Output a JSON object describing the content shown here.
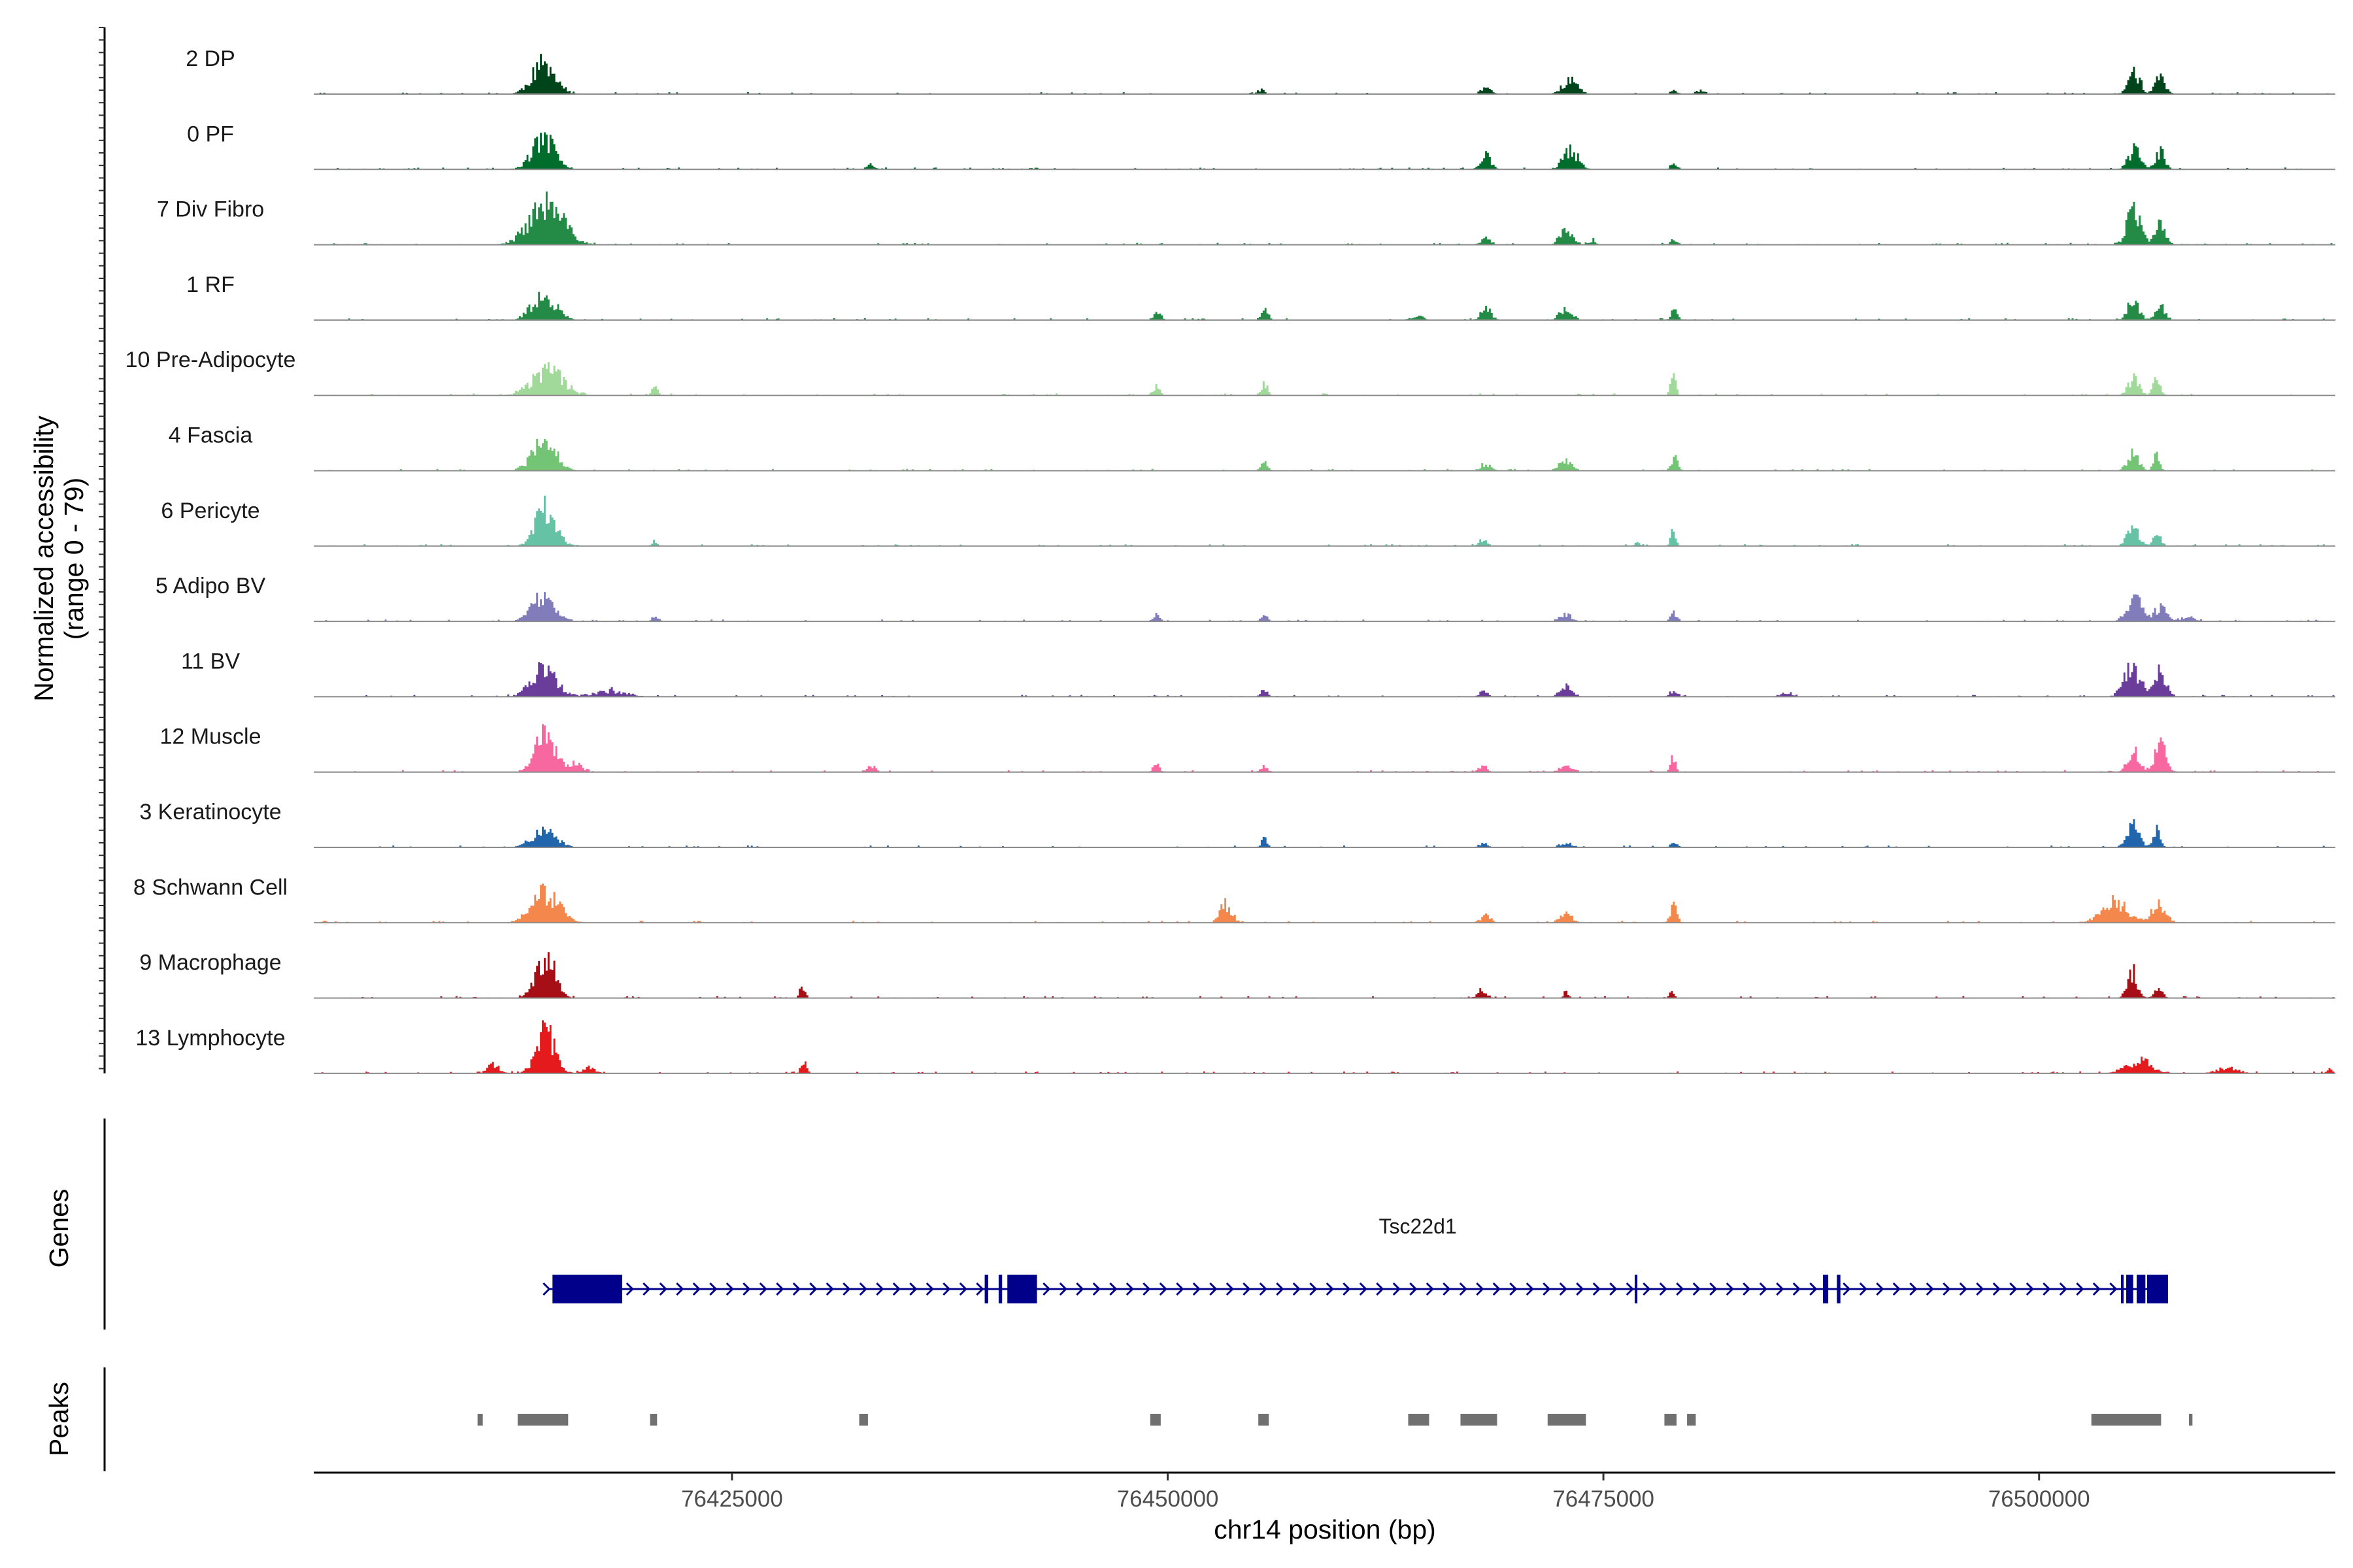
{
  "chart_data": {
    "type": "area",
    "title": "",
    "chromosome": "chr14",
    "xlabel": "chr14 position (bp)",
    "ylabel": "Normalized accessibility",
    "ylabel_range": "(range 0 - 79)",
    "ylim": [
      0,
      79
    ],
    "xlim": [
      76401000,
      76517000
    ],
    "x_ticks": [
      76425000,
      76450000,
      76475000,
      76500000
    ],
    "x_tick_labels": [
      "76425000",
      "76450000",
      "76475000",
      "76500000"
    ],
    "panel_labels": {
      "genes": "Genes",
      "peaks": "Peaks"
    },
    "colors": {
      "baseline": "#8c8c8c",
      "gene": "#00008b",
      "peak": "#707070",
      "axis": "#000000"
    },
    "tracks": [
      {
        "name": "2 DP",
        "color": "#00441b",
        "seed": 11,
        "peaks": [
          [
            76413300,
            76415000,
            42,
            1400
          ],
          [
            76467700,
            76468700,
            10,
            600
          ],
          [
            76472300,
            76473800,
            19,
            900
          ],
          [
            76478700,
            76479300,
            6,
            400
          ],
          [
            76480000,
            76481000,
            5,
            600
          ],
          [
            76455000,
            76455600,
            6,
            400
          ],
          [
            76504800,
            76506000,
            33,
            700
          ],
          [
            76506400,
            76507400,
            25,
            600
          ]
        ]
      },
      {
        "name": "0 PF",
        "color": "#006d2c",
        "seed": 23,
        "peaks": [
          [
            76413300,
            76415000,
            42,
            1400
          ],
          [
            76467700,
            76468700,
            20,
            600
          ],
          [
            76472300,
            76473800,
            26,
            900
          ],
          [
            76478700,
            76479300,
            10,
            400
          ],
          [
            76432500,
            76433300,
            6,
            500
          ],
          [
            76504800,
            76506000,
            28,
            700
          ],
          [
            76506400,
            76507400,
            26,
            600
          ]
        ]
      },
      {
        "name": "7 Div Fibro",
        "color": "#238b45",
        "seed": 37,
        "peaks": [
          [
            76412800,
            76415800,
            56,
            2000
          ],
          [
            76467700,
            76468700,
            9,
            600
          ],
          [
            76472300,
            76473300,
            24,
            700
          ],
          [
            76474000,
            76474600,
            6,
            400
          ],
          [
            76478700,
            76479300,
            7,
            400
          ],
          [
            76504800,
            76506000,
            52,
            800
          ],
          [
            76506400,
            76507400,
            35,
            600
          ]
        ]
      },
      {
        "name": "1 RF",
        "color": "#238b45",
        "seed": 41,
        "peaks": [
          [
            76413300,
            76415000,
            35,
            1400
          ],
          [
            76449000,
            76449700,
            10,
            500
          ],
          [
            76455200,
            76455800,
            18,
            400
          ],
          [
            76463500,
            76465000,
            6,
            700
          ],
          [
            76467700,
            76468700,
            16,
            600
          ],
          [
            76472300,
            76473300,
            18,
            700
          ],
          [
            76478700,
            76479300,
            13,
            400
          ],
          [
            76504800,
            76505900,
            27,
            700
          ],
          [
            76506400,
            76507400,
            20,
            600
          ]
        ]
      },
      {
        "name": "10 Pre-Adipocyte",
        "color": "#a1d99b",
        "seed": 53,
        "peaks": [
          [
            76413000,
            76415800,
            35,
            1800
          ],
          [
            76420300,
            76420700,
            16,
            300
          ],
          [
            76449000,
            76449600,
            13,
            400
          ],
          [
            76455200,
            76455800,
            16,
            400
          ],
          [
            76478700,
            76479200,
            32,
            300
          ],
          [
            76504800,
            76505900,
            23,
            700
          ],
          [
            76506400,
            76507000,
            29,
            400
          ]
        ]
      },
      {
        "name": "4 Fascia",
        "color": "#74c476",
        "seed": 61,
        "peaks": [
          [
            76413300,
            76415000,
            40,
            1400
          ],
          [
            76455200,
            76455800,
            12,
            400
          ],
          [
            76467700,
            76468700,
            10,
            600
          ],
          [
            76472300,
            76473300,
            13,
            700
          ],
          [
            76478700,
            76479300,
            20,
            400
          ],
          [
            76504800,
            76505900,
            23,
            700
          ],
          [
            76506400,
            76507000,
            20,
            400
          ]
        ]
      },
      {
        "name": "6 Pericyte",
        "color": "#66c2a4",
        "seed": 71,
        "peaks": [
          [
            76413500,
            76415000,
            53,
            1200
          ],
          [
            76420300,
            76420700,
            8,
            300
          ],
          [
            76467700,
            76468400,
            8,
            500
          ],
          [
            76476700,
            76477100,
            7,
            300
          ],
          [
            76478700,
            76479200,
            22,
            300
          ],
          [
            76504800,
            76505900,
            25,
            700
          ],
          [
            76506400,
            76507000,
            25,
            400
          ]
        ]
      },
      {
        "name": "5 Adipo BV",
        "color": "#807dba",
        "seed": 83,
        "peaks": [
          [
            76413300,
            76415000,
            35,
            1400
          ],
          [
            76420300,
            76420700,
            8,
            300
          ],
          [
            76449000,
            76449600,
            9,
            400
          ],
          [
            76455200,
            76455800,
            8,
            400
          ],
          [
            76472300,
            76473300,
            10,
            700
          ],
          [
            76478700,
            76479300,
            12,
            400
          ],
          [
            76504800,
            76506000,
            36,
            900
          ],
          [
            76506400,
            76507400,
            20,
            700
          ],
          [
            76507500,
            76509500,
            6,
            900
          ]
        ]
      },
      {
        "name": "11 BV",
        "color": "#6a3d9a",
        "seed": 97,
        "peaks": [
          [
            76413300,
            76415000,
            38,
            1500
          ],
          [
            76415000,
            76421000,
            8,
            2000
          ],
          [
            76455200,
            76455800,
            10,
            400
          ],
          [
            76467700,
            76468400,
            8,
            500
          ],
          [
            76472300,
            76473300,
            14,
            700
          ],
          [
            76478700,
            76479300,
            8,
            400
          ],
          [
            76485000,
            76486000,
            6,
            600
          ],
          [
            76504600,
            76506000,
            42,
            1000
          ],
          [
            76506400,
            76507400,
            36,
            700
          ]
        ]
      },
      {
        "name": "12 Muscle",
        "color": "#f768a1",
        "seed": 101,
        "peaks": [
          [
            76413500,
            76415000,
            56,
            1200
          ],
          [
            76415500,
            76416500,
            12,
            700
          ],
          [
            76432500,
            76433300,
            10,
            500
          ],
          [
            76449000,
            76449600,
            10,
            400
          ],
          [
            76455200,
            76455800,
            8,
            400
          ],
          [
            76467700,
            76468400,
            7,
            500
          ],
          [
            76472300,
            76473300,
            9,
            700
          ],
          [
            76478700,
            76479200,
            19,
            300
          ],
          [
            76504800,
            76505900,
            34,
            700
          ],
          [
            76506400,
            76507400,
            38,
            700
          ]
        ]
      },
      {
        "name": "3 Keratinocyte",
        "color": "#2166ac",
        "seed": 113,
        "peaks": [
          [
            76413300,
            76415000,
            25,
            1400
          ],
          [
            76455200,
            76455800,
            12,
            400
          ],
          [
            76467700,
            76468400,
            6,
            500
          ],
          [
            76472300,
            76473300,
            7,
            700
          ],
          [
            76478700,
            76479300,
            6,
            400
          ],
          [
            76504800,
            76505900,
            30,
            700
          ],
          [
            76506400,
            76507000,
            28,
            400
          ]
        ]
      },
      {
        "name": "8 Schwann Cell",
        "color": "#f4874b",
        "seed": 127,
        "peaks": [
          [
            76413000,
            76415500,
            43,
            1600
          ],
          [
            76452800,
            76453800,
            26,
            700
          ],
          [
            76467700,
            76468700,
            10,
            600
          ],
          [
            76472300,
            76473300,
            14,
            700
          ],
          [
            76478700,
            76479300,
            23,
            400
          ],
          [
            76503000,
            76505500,
            30,
            1500
          ],
          [
            76505800,
            76507800,
            24,
            900
          ]
        ]
      },
      {
        "name": "9 Macrophage",
        "color": "#a50f15",
        "seed": 131,
        "peaks": [
          [
            76413500,
            76415000,
            60,
            1100
          ],
          [
            76428800,
            76429200,
            18,
            300
          ],
          [
            76467500,
            76468500,
            10,
            600
          ],
          [
            76472600,
            76473000,
            9,
            300
          ],
          [
            76478700,
            76479000,
            8,
            300
          ],
          [
            76504800,
            76505800,
            36,
            600
          ],
          [
            76506400,
            76507200,
            12,
            500
          ]
        ]
      },
      {
        "name": "13 Lymphocyte",
        "color": "#e41a1c",
        "seed": 139,
        "peaks": [
          [
            76413500,
            76415000,
            60,
            1100
          ],
          [
            76410500,
            76412000,
            12,
            700
          ],
          [
            76416000,
            76417500,
            10,
            700
          ],
          [
            76428800,
            76429300,
            22,
            300
          ],
          [
            76504200,
            76507200,
            18,
            1500
          ],
          [
            76509000,
            76512500,
            8,
            1200
          ],
          [
            76516400,
            76516800,
            8,
            300
          ]
        ]
      }
    ],
    "gene": {
      "name": "Tsc22d1",
      "strand": "+",
      "start": 76414700,
      "end": 76507400,
      "exons": [
        [
          76414700,
          76418700
        ],
        [
          76439500,
          76439700
        ],
        [
          76440300,
          76440500
        ],
        [
          76440800,
          76442500
        ],
        [
          76476800,
          76476900
        ],
        [
          76487600,
          76487900
        ],
        [
          76488400,
          76488600
        ],
        [
          76504700,
          76504800
        ],
        [
          76505000,
          76505400
        ],
        [
          76505600,
          76506100
        ],
        [
          76506200,
          76507400
        ]
      ]
    },
    "peaks": [
      [
        76410400,
        76410700
      ],
      [
        76412700,
        76415600
      ],
      [
        76420300,
        76420700
      ],
      [
        76432300,
        76432800
      ],
      [
        76449000,
        76449600
      ],
      [
        76455200,
        76455800
      ],
      [
        76463800,
        76465000
      ],
      [
        76466800,
        76468900
      ],
      [
        76471800,
        76474000
      ],
      [
        76478500,
        76479200
      ],
      [
        76479800,
        76480300
      ],
      [
        76503000,
        76507000
      ],
      [
        76508600,
        76508800
      ]
    ]
  }
}
